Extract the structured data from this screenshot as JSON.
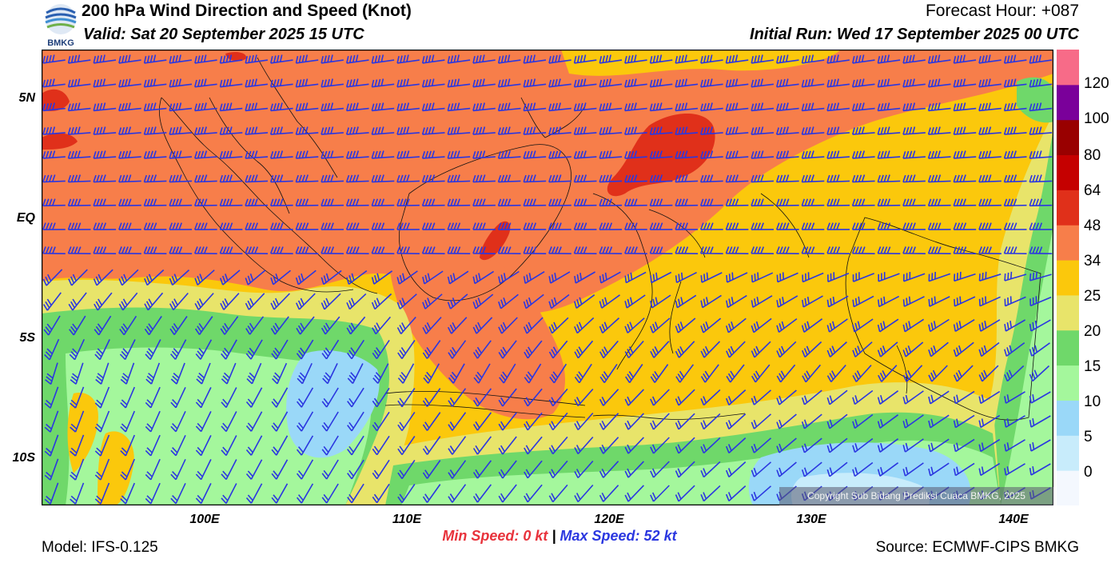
{
  "header": {
    "title": "200 hPa Wind Direction and Speed (Knot)",
    "valid": "Valid: Sat 20 September 2025 15 UTC",
    "forecast_hour": "Forecast Hour: +087",
    "initial_run": "Initial Run: Wed 17 September 2025 00 UTC"
  },
  "logo": {
    "text": "BMKG",
    "icon": "bmkg-logo-icon"
  },
  "map": {
    "lat_labels": [
      "5N",
      "EQ",
      "5S",
      "10S"
    ],
    "lon_labels": [
      "100E",
      "110E",
      "120E",
      "130E",
      "140E"
    ],
    "copyright": "Copyright Sub Bidang Prediksi Cuaca BMKG, 2025",
    "barb_color": "#2b37e0"
  },
  "colorbar": {
    "labels": [
      "120",
      "100",
      "80",
      "64",
      "48",
      "34",
      "25",
      "20",
      "15",
      "10",
      "5",
      "0"
    ],
    "colors": [
      "#f4f8fe",
      "#c8ecfb",
      "#9ad8f8",
      "#a4f79c",
      "#6fd86a",
      "#e8e46a",
      "#fbc80c",
      "#f77e4a",
      "#e0301a",
      "#c50000",
      "#990000",
      "#7a009a",
      "#f76b88"
    ]
  },
  "footer": {
    "min_speed": "Min Speed:   0 kt",
    "separator": "|",
    "max_speed": "Max Speed:  52 kt",
    "model": "Model: IFS-0.125",
    "source": "Source: ECMWF-CIPS BMKG"
  }
}
